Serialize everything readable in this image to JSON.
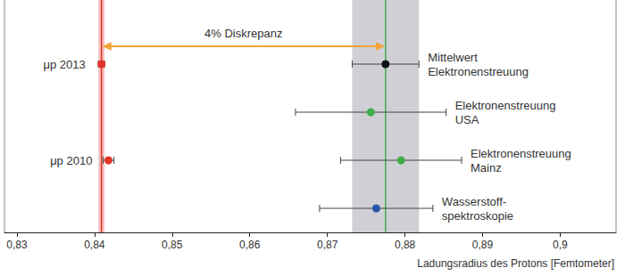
{
  "chart_data": {
    "type": "scatter",
    "orientation": "horizontal",
    "grid": false,
    "tick_labels": "x",
    "x_label": "Ladungsradius des Protons [Femtometer]",
    "categories": [
      null,
      null,
      null,
      null
    ],
    "xlim": [
      0.8284,
      0.9072
    ],
    "xticks": [
      {
        "value": 0.83,
        "label": "0,83"
      },
      {
        "value": 0.84,
        "label": "0,84"
      },
      {
        "value": 0.85,
        "label": "0,85"
      },
      {
        "value": 0.86,
        "label": "0,86"
      },
      {
        "value": 0.87,
        "label": "0,87"
      },
      {
        "value": 0.88,
        "label": "0,88"
      },
      {
        "value": 0.89,
        "label": "0,89"
      },
      {
        "value": 0.9,
        "label": "0,9"
      }
    ],
    "series": [
      {
        "name": "μp 2013",
        "color": "#e3342a",
        "marker": "circle",
        "values": [
          0.8409,
          null,
          null,
          null
        ],
        "errors": [
          0.0004,
          null,
          null,
          null
        ]
      },
      {
        "name": "μp 2010",
        "color": "#e3342a",
        "marker": "circle",
        "values": [
          null,
          null,
          0.8418,
          null
        ],
        "errors": [
          null,
          null,
          0.0007,
          null
        ]
      },
      {
        "name": "Mittelwert\nElektronenstreuung",
        "color": "#111111",
        "marker": "circle",
        "values": [
          0.8775,
          null,
          null,
          null
        ],
        "errors": [
          0.0043,
          null,
          null,
          null
        ]
      },
      {
        "name": "Elektronenstreuung\nUSA",
        "color": "#3fae49",
        "marker": "circle",
        "values": [
          null,
          0.8756,
          null,
          null
        ],
        "errors": [
          null,
          0.0097,
          null,
          null
        ]
      },
      {
        "name": "Elektronenstreuung\nMainz",
        "color": "#3fae49",
        "marker": "circle",
        "values": [
          null,
          null,
          0.8795,
          null
        ],
        "errors": [
          null,
          null,
          0.0078,
          null
        ]
      },
      {
        "name": "Wasserstoff-\nspektroskopie",
        "color": "#2a56a8",
        "marker": "circle",
        "values": [
          null,
          null,
          null,
          0.8763
        ],
        "errors": [
          null,
          null,
          null,
          0.0073
        ]
      }
    ],
    "reference_lines": [
      {
        "value": 0.8409,
        "color": "#e3342a",
        "band": {
          "lo": 0.8405,
          "hi": 0.8413,
          "color": "#f5c2be"
        }
      },
      {
        "value": 0.8775,
        "color": "#3fae49",
        "band": {
          "lo": 0.8732,
          "hi": 0.8818,
          "color": "#cfcfd5"
        }
      }
    ],
    "annotation": {
      "text": "4% Diskrepanz",
      "from": 0.8409,
      "to": 0.8775,
      "color": "#f2a33a"
    }
  }
}
